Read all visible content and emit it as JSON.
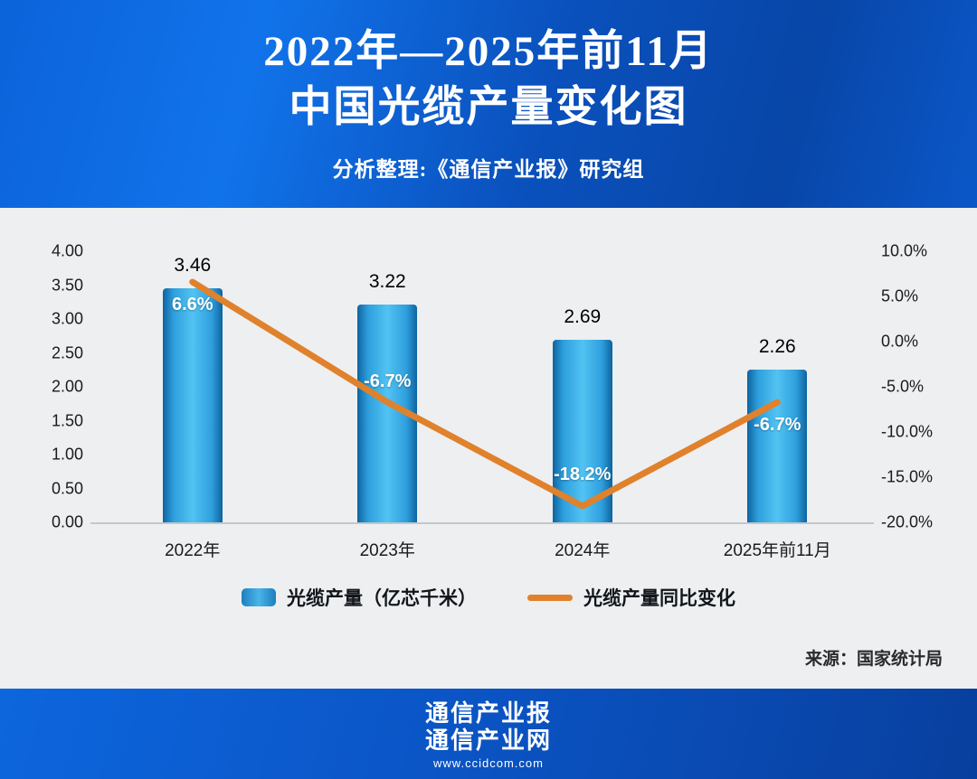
{
  "header": {
    "title_line1": "2022年—2025年前11月",
    "title_line2": "中国光缆产量变化图",
    "subtitle": "分析整理:《通信产业报》研究组"
  },
  "chart_data": {
    "type": "combo",
    "categories": [
      "2022年",
      "2023年",
      "2024年",
      "2025年前11月"
    ],
    "series": [
      {
        "name": "光缆产量（亿芯千米）",
        "type": "bar",
        "axis": "left",
        "color": "#2e9fdd",
        "values": [
          3.46,
          3.22,
          2.69,
          2.26
        ],
        "labels": [
          "3.46",
          "3.22",
          "2.69",
          "2.26"
        ]
      },
      {
        "name": "光缆产量同比变化",
        "type": "line",
        "axis": "right",
        "color": "#e0812c",
        "values": [
          6.6,
          -6.7,
          -18.2,
          -6.7
        ],
        "labels": [
          "6.6%",
          "-6.7%",
          "-18.2%",
          "-6.7%"
        ]
      }
    ],
    "left_axis": {
      "min": 0,
      "max": 4,
      "step": 0.5,
      "ticks": [
        "4.00",
        "3.50",
        "3.00",
        "2.50",
        "2.00",
        "1.50",
        "1.00",
        "0.50",
        "0.00"
      ]
    },
    "right_axis": {
      "min": -20,
      "max": 10,
      "step": 5,
      "ticks": [
        "10.0%",
        "5.0%",
        "0.0%",
        "-5.0%",
        "-10.0%",
        "-15.0%",
        "-20.0%"
      ]
    },
    "grid": false,
    "legend_position": "bottom"
  },
  "source_note": "来源：国家统计局",
  "footer": {
    "brand_line1": "通信产业报",
    "brand_line2": "通信产业网",
    "url": "www.ccidcom.com"
  },
  "colors": {
    "header_blue": "#0a51bd",
    "bar_blue": "#2e9fdd",
    "line_orange": "#e0812c",
    "chart_bg": "#edeff1"
  }
}
